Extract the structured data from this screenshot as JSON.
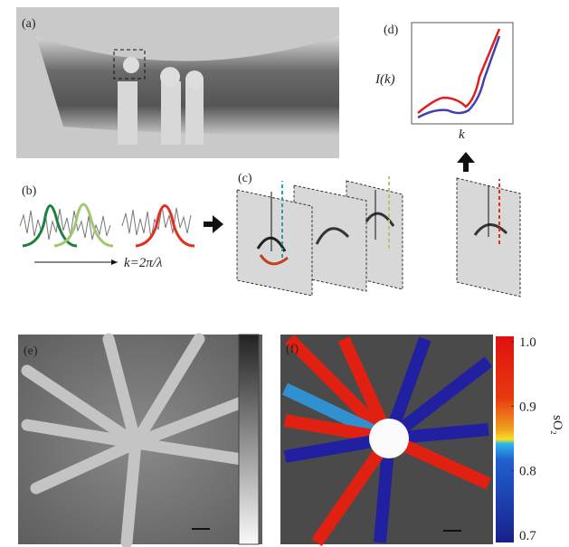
{
  "panels": {
    "a": "(a)",
    "b": "(b)",
    "c": "(c)",
    "d": "(d)",
    "e": "(e)",
    "f": "(f)"
  },
  "panel_b": {
    "axis_label": "k=2π/λ"
  },
  "panel_d": {
    "y_label": "I(k)",
    "x_label": "k"
  },
  "colorbar": {
    "title": "sO₂",
    "ticks": [
      {
        "value": 1,
        "label": "1.0"
      },
      {
        "value": 0.9,
        "label": "0.9"
      },
      {
        "value": 0.8,
        "label": "0.8"
      },
      {
        "value": 0.7,
        "label": "0.7"
      }
    ]
  }
}
